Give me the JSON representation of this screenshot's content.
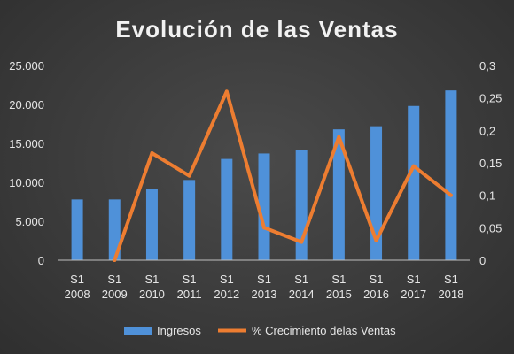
{
  "chart_data": {
    "type": "bar",
    "title": "Evolución de las Ventas",
    "categories": [
      [
        "S1",
        "2008"
      ],
      [
        "S1",
        "2009"
      ],
      [
        "S1",
        "2010"
      ],
      [
        "S1",
        "2011"
      ],
      [
        "S1",
        "2012"
      ],
      [
        "S1",
        "2013"
      ],
      [
        "S1",
        "2014"
      ],
      [
        "S1",
        "2015"
      ],
      [
        "S1",
        "2016"
      ],
      [
        "S1",
        "2017"
      ],
      [
        "S1",
        "2018"
      ]
    ],
    "series": [
      {
        "name": "Ingresos",
        "type": "bar",
        "axis": "left",
        "color": "#4f91d9",
        "values": [
          7800,
          7800,
          9100,
          10300,
          13000,
          13700,
          14100,
          16800,
          17200,
          19800,
          21800
        ]
      },
      {
        "name": "% Crecimiento delas Ventas",
        "type": "line",
        "axis": "right",
        "color": "#ed7d31",
        "values": [
          null,
          0.0,
          0.165,
          0.13,
          0.26,
          0.05,
          0.028,
          0.19,
          0.03,
          0.145,
          0.1
        ]
      }
    ],
    "y_left": {
      "range": [
        0,
        25000
      ],
      "ticks": [
        0,
        5000,
        10000,
        15000,
        20000,
        25000
      ],
      "tick_labels": [
        "0",
        "5.000",
        "10.000",
        "15.000",
        "20.000",
        "25.000"
      ]
    },
    "y_right": {
      "range": [
        0,
        0.3
      ],
      "ticks": [
        0,
        0.05,
        0.1,
        0.15,
        0.2,
        0.25,
        0.3
      ],
      "tick_labels": [
        "0",
        "0,05",
        "0,1",
        "0,15",
        "0,2",
        "0,25",
        "0,3"
      ]
    },
    "grid": false,
    "legend": "bottom-center",
    "xlabel": "",
    "ylabel": ""
  }
}
